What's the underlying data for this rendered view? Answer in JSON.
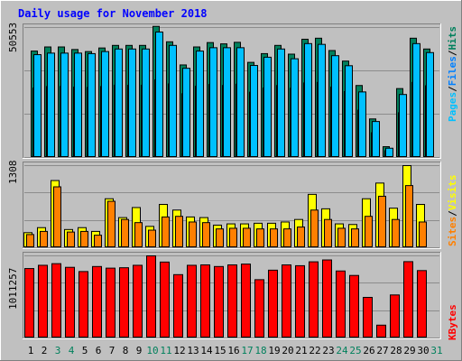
{
  "title": "Daily usage for November 2018",
  "labels": {
    "pages": "Pages",
    "files": "Files",
    "hits": "Hits",
    "sites": "Sites",
    "visits": "Visits",
    "kbytes": "KBytes",
    "sep": "/"
  },
  "colors": {
    "background": "#c0c0c0",
    "title": "#0000ff",
    "hits": "#00805c",
    "files": "#0080ff",
    "pages": "#00c0ff",
    "visits": "#ffff00",
    "sites": "#ff8000",
    "kbytes": "#ff0000",
    "weekend_day": "#00805c"
  },
  "chart_data": [
    {
      "type": "bar",
      "panel": "hits-files-pages",
      "ymax_label": "50553",
      "ylim": [
        0,
        50553
      ],
      "categories": [
        "1",
        "2",
        "3",
        "4",
        "5",
        "6",
        "7",
        "8",
        "9",
        "10",
        "11",
        "12",
        "13",
        "14",
        "15",
        "16",
        "17",
        "18",
        "19",
        "20",
        "21",
        "22",
        "23",
        "24",
        "25",
        "26",
        "27",
        "28",
        "29",
        "30",
        "31"
      ],
      "weekend_days": [
        "3",
        "4",
        "10",
        "11",
        "17",
        "18",
        "24",
        "25",
        "31"
      ],
      "series": [
        {
          "name": "Hits",
          "values": [
            41400,
            43000,
            43000,
            42000,
            41200,
            42600,
            43600,
            43600,
            43600,
            51000,
            45000,
            36000,
            43000,
            44700,
            44200,
            44800,
            37000,
            40400,
            43600,
            40200,
            46000,
            46400,
            41600,
            37500,
            28000,
            15000,
            4200,
            26800,
            46400,
            42200,
            0
          ]
        },
        {
          "name": "Files",
          "values": [
            27000,
            27600,
            27600,
            27400,
            27200,
            27600,
            28100,
            28100,
            28100,
            30200,
            28600,
            24800,
            27700,
            28400,
            28000,
            28500,
            25400,
            27000,
            28000,
            26900,
            29000,
            29200,
            27400,
            25600,
            18400,
            9600,
            2600,
            17400,
            29200,
            27900,
            0
          ]
        },
        {
          "name": "Pages",
          "values": [
            40000,
            40600,
            40600,
            40600,
            40400,
            41200,
            42200,
            42200,
            42200,
            48800,
            43600,
            34700,
            41400,
            42700,
            42700,
            42700,
            35800,
            39000,
            42200,
            38400,
            44300,
            44000,
            39600,
            35700,
            25500,
            14000,
            3600,
            24500,
            44300,
            40800,
            0
          ]
        }
      ]
    },
    {
      "type": "bar",
      "panel": "visits-sites",
      "ymax_label": "1308",
      "ylim": [
        0,
        1308
      ],
      "categories": [
        "1",
        "2",
        "3",
        "4",
        "5",
        "6",
        "7",
        "8",
        "9",
        "10",
        "11",
        "12",
        "13",
        "14",
        "15",
        "16",
        "17",
        "18",
        "19",
        "20",
        "21",
        "22",
        "23",
        "24",
        "25",
        "26",
        "27",
        "28",
        "29",
        "30",
        "31"
      ],
      "series": [
        {
          "name": "Visits",
          "values": [
            240,
            320,
            1070,
            290,
            320,
            260,
            780,
            480,
            640,
            340,
            690,
            600,
            490,
            480,
            360,
            380,
            380,
            390,
            390,
            410,
            450,
            850,
            620,
            380,
            370,
            780,
            1030,
            630,
            1308,
            690,
            0
          ]
        },
        {
          "name": "Sites",
          "values": [
            210,
            260,
            970,
            250,
            260,
            200,
            740,
            450,
            400,
            280,
            490,
            500,
            410,
            400,
            300,
            310,
            310,
            300,
            300,
            300,
            330,
            600,
            450,
            310,
            300,
            500,
            820,
            450,
            990,
            410,
            0
          ]
        }
      ]
    },
    {
      "type": "bar",
      "panel": "kbytes",
      "ymax_label": "1011257",
      "ylim": [
        0,
        1011257
      ],
      "categories": [
        "1",
        "2",
        "3",
        "4",
        "5",
        "6",
        "7",
        "8",
        "9",
        "10",
        "11",
        "12",
        "13",
        "14",
        "15",
        "16",
        "17",
        "18",
        "19",
        "20",
        "21",
        "22",
        "23",
        "24",
        "25",
        "26",
        "27",
        "28",
        "29",
        "30",
        "31"
      ],
      "series": [
        {
          "name": "KBytes",
          "values": [
            855000,
            895000,
            915000,
            870000,
            818000,
            880000,
            860000,
            865000,
            895000,
            1011257,
            935000,
            780000,
            895000,
            900000,
            880000,
            900000,
            910000,
            718000,
            835000,
            900000,
            890000,
            938000,
            961000,
            825000,
            770000,
            500000,
            158000,
            530000,
            940000,
            830000,
            0
          ]
        }
      ]
    }
  ]
}
